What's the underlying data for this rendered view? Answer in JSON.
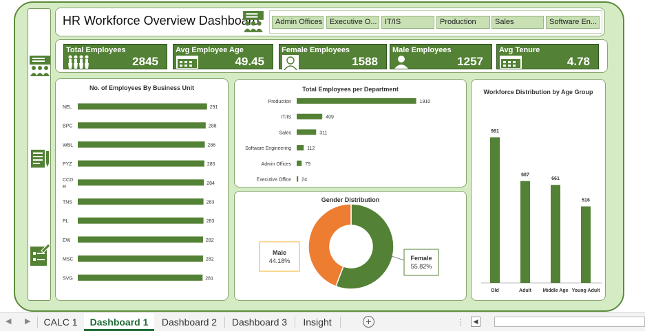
{
  "header": {
    "title": "HR Workforce Overview Dashboard"
  },
  "slicer": {
    "items": [
      "Admin Offices",
      "Executive O...",
      "IT/IS",
      "Production",
      "Sales",
      "Software En..."
    ]
  },
  "kpis": [
    {
      "title": "Total Employees",
      "value": "2845",
      "icon": "people-icon"
    },
    {
      "title": "Avg Employee Age",
      "value": "49.45",
      "icon": "calendar-icon"
    },
    {
      "title": "Female Employees",
      "value": "1588",
      "icon": "female-user-icon"
    },
    {
      "title": "Male Employees",
      "value": "1257",
      "icon": "male-user-icon"
    },
    {
      "title": "Avg Tenure",
      "value": "4.78",
      "icon": "calendar-grid-icon"
    }
  ],
  "chart_data": [
    {
      "type": "bar",
      "title": "No. of Employees By Business Unit",
      "categories": [
        "NEL",
        "BPC",
        "WBL",
        "PYZ",
        "CCDR",
        "TNS",
        "PL",
        "EW",
        "MSC",
        "SVG"
      ],
      "category_lines": [
        [
          "NEL"
        ],
        [
          "BPC"
        ],
        [
          "WBL"
        ],
        [
          "PYZ"
        ],
        [
          "CCD",
          "R"
        ],
        [
          "TNS"
        ],
        [
          "PL"
        ],
        [
          "EW"
        ],
        [
          "MSC"
        ],
        [
          "SVG"
        ]
      ],
      "values": [
        291,
        288,
        286,
        285,
        284,
        283,
        283,
        282,
        282,
        281
      ],
      "xlim": [
        0,
        310
      ],
      "orientation": "horizontal",
      "color": "#538135"
    },
    {
      "type": "bar",
      "title": "Total Employees per Department",
      "categories": [
        "Production",
        "IT/IS",
        "Sales",
        "Software Engineering",
        "Admin Offices",
        "Executive Office"
      ],
      "values": [
        1910,
        409,
        311,
        112,
        79,
        24
      ],
      "xlim": [
        0,
        2200
      ],
      "orientation": "horizontal",
      "color": "#538135"
    },
    {
      "type": "pie",
      "title": "Gender Distribution",
      "slices": [
        {
          "label": "Male",
          "percent": "44.18%",
          "value": 44.18,
          "color": "#ed7d31"
        },
        {
          "label": "Female",
          "percent": "55.82%",
          "value": 55.82,
          "color": "#538135"
        }
      ]
    },
    {
      "type": "bar",
      "title": "Workforce Distribution by Age Group",
      "categories": [
        "Old",
        "Adult",
        "Middle Age",
        "Young Adult"
      ],
      "values": [
        981,
        687,
        661,
        516
      ],
      "ylim": [
        0,
        1000
      ],
      "orientation": "vertical",
      "color": "#538135"
    }
  ],
  "tabs": [
    "CALC 1",
    "Dashboard 1",
    "Dashboard 2",
    "Dashboard 3",
    "Insight"
  ],
  "active_tab": "Dashboard 1",
  "colors": {
    "accent": "#538135",
    "frame": "#d4ebc4",
    "orange": "#ed7d31"
  }
}
